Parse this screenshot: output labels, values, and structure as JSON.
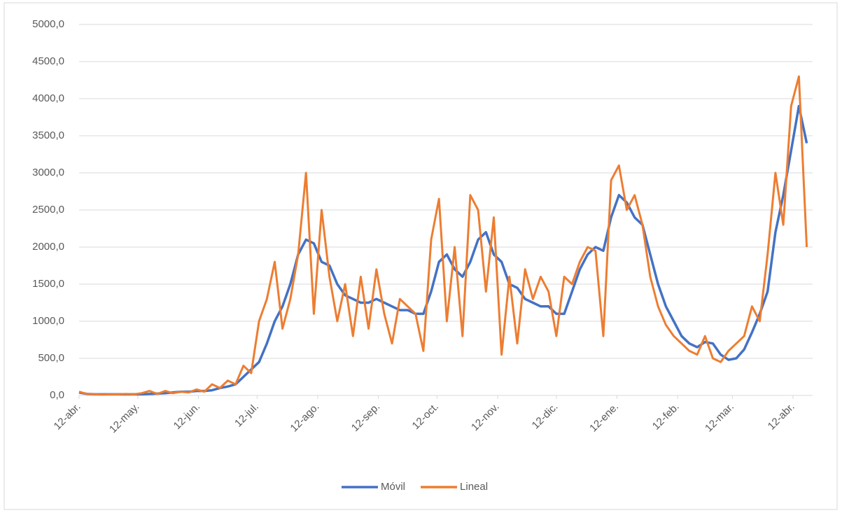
{
  "chart_data": {
    "type": "line",
    "x": [
      0,
      4,
      8,
      12,
      16,
      20,
      24,
      28,
      32,
      36,
      40,
      44,
      48,
      52,
      56,
      60,
      64,
      68,
      72,
      76,
      80,
      84,
      88,
      92,
      96,
      100,
      104,
      108,
      112,
      116,
      120,
      124,
      128,
      132,
      136,
      140,
      144,
      148,
      152,
      156,
      160,
      164,
      168,
      172,
      176,
      180,
      184,
      188,
      192,
      196,
      200,
      204,
      208,
      212,
      216,
      220,
      224,
      228,
      232,
      236,
      240,
      244,
      248,
      252,
      256,
      260,
      264,
      268,
      272,
      276,
      280,
      284,
      288,
      292,
      296,
      300,
      304,
      308,
      312,
      316,
      320,
      324,
      328,
      332,
      336,
      340,
      344,
      348,
      352,
      356,
      360,
      364,
      368,
      372
    ],
    "series": [
      {
        "name": "Móvil",
        "color": "#4472c4",
        "values": [
          40,
          20,
          15,
          15,
          15,
          15,
          15,
          15,
          15,
          20,
          25,
          30,
          40,
          50,
          50,
          60,
          60,
          70,
          100,
          120,
          150,
          250,
          350,
          450,
          700,
          1000,
          1200,
          1500,
          1900,
          2100,
          2050,
          1800,
          1750,
          1500,
          1350,
          1300,
          1250,
          1250,
          1300,
          1250,
          1200,
          1150,
          1150,
          1100,
          1100,
          1400,
          1800,
          1900,
          1700,
          1600,
          1800,
          2100,
          2200,
          1900,
          1800,
          1500,
          1450,
          1300,
          1250,
          1200,
          1200,
          1100,
          1100,
          1400,
          1700,
          1900,
          2000,
          1950,
          2400,
          2700,
          2600,
          2400,
          2300,
          1900,
          1500,
          1200,
          1000,
          800,
          700,
          650,
          720,
          700,
          550,
          480,
          500,
          620,
          850,
          1100,
          1400,
          2200,
          2700,
          3300,
          3900,
          3400
        ]
      },
      {
        "name": "Lineal",
        "color": "#ed7d31",
        "values": [
          50,
          20,
          15,
          10,
          15,
          15,
          20,
          15,
          30,
          60,
          20,
          60,
          30,
          50,
          40,
          80,
          50,
          150,
          100,
          200,
          150,
          400,
          300,
          1000,
          1300,
          1800,
          900,
          1300,
          1900,
          3000,
          1100,
          2500,
          1600,
          1000,
          1500,
          800,
          1600,
          900,
          1700,
          1100,
          700,
          1300,
          1200,
          1100,
          600,
          2100,
          2650,
          1000,
          2000,
          800,
          2700,
          2500,
          1400,
          2400,
          550,
          1600,
          700,
          1700,
          1300,
          1600,
          1400,
          800,
          1600,
          1500,
          1800,
          2000,
          1950,
          800,
          2900,
          3100,
          2500,
          2700,
          2300,
          1600,
          1200,
          950,
          800,
          700,
          600,
          550,
          800,
          500,
          450,
          600,
          700,
          800,
          1200,
          1000,
          1900,
          3000,
          2300,
          3900,
          4300,
          2000
        ]
      }
    ],
    "xlim": [
      0,
      375
    ],
    "xticks": [
      {
        "value": 0,
        "label": "12-abr."
      },
      {
        "value": 30,
        "label": "12-may."
      },
      {
        "value": 61,
        "label": "12-jun."
      },
      {
        "value": 91,
        "label": "12-jul."
      },
      {
        "value": 122,
        "label": "12-ago."
      },
      {
        "value": 153,
        "label": "12-sep."
      },
      {
        "value": 183,
        "label": "12-oct."
      },
      {
        "value": 214,
        "label": "12-nov."
      },
      {
        "value": 244,
        "label": "12-dic."
      },
      {
        "value": 275,
        "label": "12-ene."
      },
      {
        "value": 306,
        "label": "12-feb."
      },
      {
        "value": 334,
        "label": "12-mar."
      },
      {
        "value": 365,
        "label": "12-abr."
      }
    ],
    "ylim": [
      0,
      5000
    ],
    "yticks": [
      {
        "value": 0,
        "label": "0,0"
      },
      {
        "value": 500,
        "label": "500,0"
      },
      {
        "value": 1000,
        "label": "1000,0"
      },
      {
        "value": 1500,
        "label": "1500,0"
      },
      {
        "value": 2000,
        "label": "2000,0"
      },
      {
        "value": 2500,
        "label": "2500,0"
      },
      {
        "value": 3000,
        "label": "3000,0"
      },
      {
        "value": 3500,
        "label": "3500,0"
      },
      {
        "value": 4000,
        "label": "4000,0"
      },
      {
        "value": 4500,
        "label": "4500,0"
      },
      {
        "value": 5000,
        "label": "5000,0"
      }
    ],
    "grid": true,
    "legend": "bottom"
  }
}
